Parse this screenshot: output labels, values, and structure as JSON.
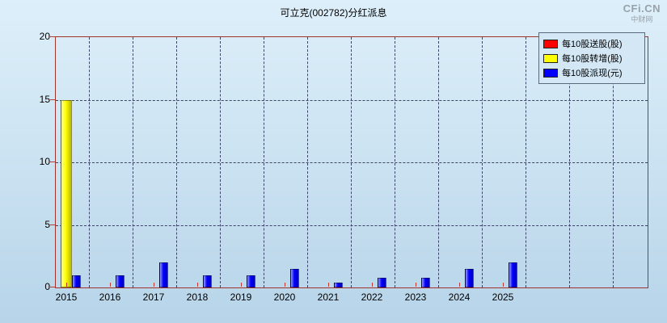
{
  "logo": {
    "name": "CFi.CN",
    "subname": "中财网"
  },
  "chart_data": {
    "type": "bar",
    "title": "可立克(002782)分红派息",
    "categories": [
      "2015",
      "2016",
      "2017",
      "2018",
      "2019",
      "2020",
      "2021",
      "2022",
      "2023",
      "2024",
      "2025"
    ],
    "series": [
      {
        "id": "send",
        "name": "每10股送股(股)",
        "color": "#ff0000",
        "values": [
          0,
          0,
          0,
          0,
          0,
          0,
          0,
          0,
          0,
          0,
          0
        ]
      },
      {
        "id": "transfer",
        "name": "每10股转增(股)",
        "color": "#ffff00",
        "values": [
          15,
          0,
          0,
          0,
          0,
          0,
          0,
          0,
          0,
          0,
          0
        ]
      },
      {
        "id": "cash",
        "name": "每10股派现(元)",
        "color": "#0000ff",
        "values": [
          1,
          1,
          2,
          1,
          1,
          1.5,
          0.4,
          0.8,
          0.8,
          1.5,
          2
        ]
      }
    ],
    "ylim": [
      0,
      20
    ],
    "yticks": [
      0,
      5,
      10,
      15,
      20
    ],
    "xlabel": "",
    "ylabel": "",
    "grid": "dashed",
    "legend_position": "top-right"
  }
}
